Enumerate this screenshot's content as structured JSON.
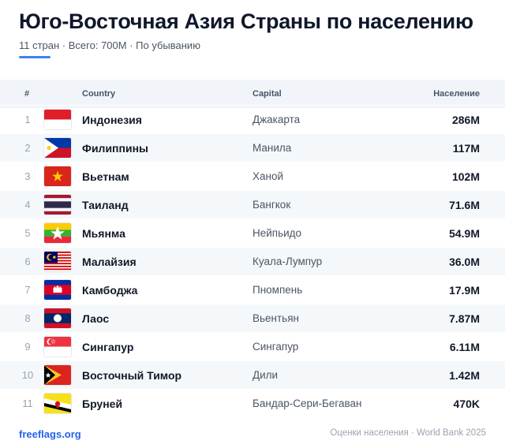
{
  "title": "Юго-Восточная Азия Страны по населению",
  "subtitle": "11 стран · Всего: 700M · По убыванию",
  "colors": {
    "accent": "#3b82f6",
    "link": "#2563eb",
    "row_alt": "#f5f8fb"
  },
  "columns": {
    "num": "#",
    "country": "Country",
    "capital": "Capital",
    "population": "Население"
  },
  "rows": [
    {
      "num": "1",
      "flag": "flag-indonesia-icon",
      "country": "Индонезия",
      "capital": "Джакарта",
      "population": "286M"
    },
    {
      "num": "2",
      "flag": "flag-philippines-icon",
      "country": "Филиппины",
      "capital": "Манила",
      "population": "117M"
    },
    {
      "num": "3",
      "flag": "flag-vietnam-icon",
      "country": "Вьетнам",
      "capital": "Ханой",
      "population": "102M"
    },
    {
      "num": "4",
      "flag": "flag-thailand-icon",
      "country": "Таиланд",
      "capital": "Бангкок",
      "population": "71.6M"
    },
    {
      "num": "5",
      "flag": "flag-myanmar-icon",
      "country": "Мьянма",
      "capital": "Нейпьидо",
      "population": "54.9M"
    },
    {
      "num": "6",
      "flag": "flag-malaysia-icon",
      "country": "Малайзия",
      "capital": "Куала-Лумпур",
      "population": "36.0M"
    },
    {
      "num": "7",
      "flag": "flag-cambodia-icon",
      "country": "Камбоджа",
      "capital": "Пномпень",
      "population": "17.9M"
    },
    {
      "num": "8",
      "flag": "flag-laos-icon",
      "country": "Лаос",
      "capital": "Вьентьян",
      "population": "7.87M"
    },
    {
      "num": "9",
      "flag": "flag-singapore-icon",
      "country": "Сингапур",
      "capital": "Сингапур",
      "population": "6.11M"
    },
    {
      "num": "10",
      "flag": "flag-timor-leste-icon",
      "country": "Восточный Тимор",
      "capital": "Дили",
      "population": "1.42M"
    },
    {
      "num": "11",
      "flag": "flag-brunei-icon",
      "country": "Бруней",
      "capital": "Бандар-Сери-Бегаван",
      "population": "470K"
    }
  ],
  "footer": {
    "link": "freeflags.org",
    "note": "Оценки населения · World Bank 2025"
  }
}
